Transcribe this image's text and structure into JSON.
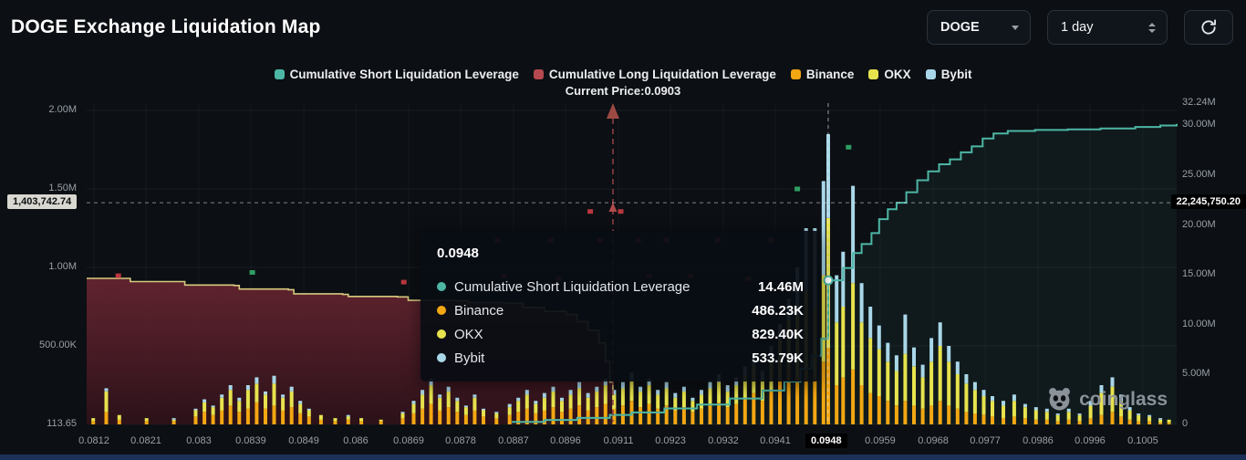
{
  "header": {
    "title": "DOGE Exchange Liquidation Map",
    "coin_select": {
      "value": "DOGE"
    },
    "range_select": {
      "value": "1 day"
    }
  },
  "legend": {
    "items": [
      {
        "label": "Cumulative Short Liquidation Leverage",
        "color": "#4db6a5"
      },
      {
        "label": "Cumulative Long Liquidation Leverage",
        "color": "#b5494f"
      },
      {
        "label": "Binance",
        "color": "#f3a712"
      },
      {
        "label": "OKX",
        "color": "#e7e34e"
      },
      {
        "label": "Bybit",
        "color": "#a9d7e8"
      }
    ],
    "current_price_label": "Current Price:0.0903"
  },
  "tooltip": {
    "title": "0.0948",
    "rows": [
      {
        "label": "Cumulative Short Liquidation Leverage",
        "value": "14.46M",
        "color": "#4db6a5"
      },
      {
        "label": "Binance",
        "value": "486.23K",
        "color": "#f3a712"
      },
      {
        "label": "OKX",
        "value": "829.40K",
        "color": "#e7e34e"
      },
      {
        "label": "Bybit",
        "value": "533.79K",
        "color": "#a9d7e8"
      }
    ]
  },
  "crosshair_badges": {
    "left_badge": "1,403,742.74",
    "right_badge": "22,245,750.20",
    "x_label": "0.0948"
  },
  "watermark": {
    "text": "coinglass"
  },
  "chart_data": {
    "type": "bar",
    "title": "DOGE Exchange Liquidation Map",
    "x_axis": {
      "labels": [
        "0.0812",
        "0.0821",
        "0.083",
        "0.0839",
        "0.0849",
        "0.086",
        "0.0869",
        "0.0878",
        "0.0887",
        "0.0896",
        "0.0911",
        "0.0923",
        "0.0932",
        "0.0941",
        "0.0948",
        "0.0959",
        "0.0968",
        "0.0977",
        "0.0986",
        "0.0996",
        "0.1005"
      ],
      "positions": [
        0.0067,
        0.0544,
        0.1029,
        0.1506,
        0.1992,
        0.2469,
        0.2954,
        0.3431,
        0.3916,
        0.4393,
        0.4879,
        0.5356,
        0.5841,
        0.6318,
        0.6803,
        0.728,
        0.7766,
        0.8243,
        0.8728,
        0.9205,
        0.969
      ],
      "highlight_index": 14
    },
    "y_left": {
      "max": 2.0,
      "unit": "M",
      "ticks": [
        {
          "label": "2.00M",
          "v": 2.0
        },
        {
          "label": "1.50M",
          "v": 1.5
        },
        {
          "label": "1.00M",
          "v": 1.0
        },
        {
          "label": "500.00K",
          "v": 0.5
        },
        {
          "label": "113.65",
          "v": 0
        }
      ]
    },
    "y_right": {
      "max": 32.24,
      "unit": "M",
      "ticks": [
        {
          "label": "32.24M",
          "v": 32.24
        },
        {
          "label": "30.00M",
          "v": 30
        },
        {
          "label": "25.00M",
          "v": 25
        },
        {
          "label": "20.00M",
          "v": 20
        },
        {
          "label": "15.00M",
          "v": 15
        },
        {
          "label": "10.00M",
          "v": 10
        },
        {
          "label": "5.00M",
          "v": 5
        },
        {
          "label": "0",
          "v": 0
        }
      ]
    },
    "current_price": {
      "value": "0.0903",
      "x": 0.4828,
      "color": "#9c4a44"
    },
    "crosshair": {
      "x": 0.6803,
      "y_right_value": 22.24575,
      "y_left_value": 1.40374274
    },
    "series": {
      "bars": {
        "names": [
          "Binance",
          "OKX",
          "Bybit"
        ],
        "colors": [
          "#f3a712",
          "#e7e34e",
          "#a9d7e8"
        ],
        "axis": "left",
        "points": [
          [
            0.006,
            0.02,
            0.02,
            0
          ],
          [
            0.018,
            0.08,
            0.13,
            0.02
          ],
          [
            0.03,
            0.03,
            0.03,
            0
          ],
          [
            0.055,
            0.02,
            0.02,
            0
          ],
          [
            0.08,
            0.02,
            0.01,
            0.01
          ],
          [
            0.1,
            0.05,
            0.04,
            0.01
          ],
          [
            0.108,
            0.08,
            0.06,
            0.02
          ],
          [
            0.116,
            0.06,
            0.05,
            0.01
          ],
          [
            0.124,
            0.09,
            0.08,
            0.02
          ],
          [
            0.132,
            0.12,
            0.1,
            0.03
          ],
          [
            0.14,
            0.08,
            0.07,
            0.02
          ],
          [
            0.148,
            0.1,
            0.12,
            0.03
          ],
          [
            0.156,
            0.14,
            0.12,
            0.04
          ],
          [
            0.164,
            0.1,
            0.09,
            0.02
          ],
          [
            0.172,
            0.12,
            0.14,
            0.05
          ],
          [
            0.18,
            0.09,
            0.08,
            0.02
          ],
          [
            0.188,
            0.11,
            0.1,
            0.03
          ],
          [
            0.196,
            0.07,
            0.06,
            0.02
          ],
          [
            0.204,
            0.05,
            0.04,
            0.01
          ],
          [
            0.215,
            0.03,
            0.03,
            0
          ],
          [
            0.228,
            0.02,
            0.02,
            0
          ],
          [
            0.24,
            0.03,
            0.02,
            0.01
          ],
          [
            0.252,
            0.02,
            0.02,
            0
          ],
          [
            0.27,
            0.02,
            0.01,
            0
          ],
          [
            0.29,
            0.04,
            0.03,
            0.01
          ],
          [
            0.3,
            0.07,
            0.06,
            0.02
          ],
          [
            0.308,
            0.1,
            0.09,
            0.03
          ],
          [
            0.316,
            0.13,
            0.12,
            0.04
          ],
          [
            0.324,
            0.09,
            0.08,
            0.02
          ],
          [
            0.332,
            0.11,
            0.1,
            0.03
          ],
          [
            0.34,
            0.08,
            0.07,
            0.02
          ],
          [
            0.348,
            0.06,
            0.05,
            0.01
          ],
          [
            0.356,
            0.09,
            0.08,
            0.02
          ],
          [
            0.364,
            0.05,
            0.04,
            0.01
          ],
          [
            0.376,
            0.04,
            0.03,
            0.01
          ],
          [
            0.388,
            0.06,
            0.05,
            0.02
          ],
          [
            0.396,
            0.08,
            0.07,
            0.02
          ],
          [
            0.404,
            0.1,
            0.09,
            0.03
          ],
          [
            0.412,
            0.07,
            0.06,
            0.02
          ],
          [
            0.42,
            0.09,
            0.08,
            0.03
          ],
          [
            0.428,
            0.11,
            0.1,
            0.03
          ],
          [
            0.436,
            0.08,
            0.07,
            0.02
          ],
          [
            0.444,
            0.1,
            0.09,
            0.03
          ],
          [
            0.452,
            0.12,
            0.11,
            0.04
          ],
          [
            0.46,
            0.09,
            0.08,
            0.03
          ],
          [
            0.468,
            0.11,
            0.1,
            0.03
          ],
          [
            0.476,
            0.13,
            0.12,
            0.04
          ],
          [
            0.484,
            0.1,
            0.09,
            0.03
          ],
          [
            0.492,
            0.12,
            0.11,
            0.04
          ],
          [
            0.5,
            0.15,
            0.13,
            0.05
          ],
          [
            0.508,
            0.11,
            0.1,
            0.03
          ],
          [
            0.516,
            0.13,
            0.12,
            0.04
          ],
          [
            0.524,
            0.1,
            0.09,
            0.03
          ],
          [
            0.532,
            0.12,
            0.11,
            0.04
          ],
          [
            0.54,
            0.09,
            0.08,
            0.03
          ],
          [
            0.548,
            0.11,
            0.1,
            0.03
          ],
          [
            0.556,
            0.08,
            0.07,
            0.02
          ],
          [
            0.564,
            0.1,
            0.09,
            0.03
          ],
          [
            0.572,
            0.12,
            0.11,
            0.04
          ],
          [
            0.58,
            0.14,
            0.13,
            0.05
          ],
          [
            0.588,
            0.11,
            0.1,
            0.04
          ],
          [
            0.596,
            0.13,
            0.12,
            0.05
          ],
          [
            0.604,
            0.16,
            0.15,
            0.06
          ],
          [
            0.612,
            0.2,
            0.18,
            0.07
          ],
          [
            0.62,
            0.15,
            0.14,
            0.05
          ],
          [
            0.628,
            0.22,
            0.2,
            0.08
          ],
          [
            0.636,
            0.28,
            0.26,
            0.1
          ],
          [
            0.644,
            0.35,
            0.32,
            0.13
          ],
          [
            0.652,
            0.3,
            0.4,
            0.3
          ],
          [
            0.66,
            0.35,
            0.5,
            0.4
          ],
          [
            0.668,
            0.3,
            0.45,
            0.5
          ],
          [
            0.676,
            0.4,
            0.55,
            0.6
          ],
          [
            0.6803,
            0.486,
            0.829,
            0.534
          ],
          [
            0.688,
            0.25,
            0.4,
            0.3
          ],
          [
            0.694,
            0.3,
            0.45,
            0.35
          ],
          [
            0.703,
            0.35,
            0.55,
            0.62
          ],
          [
            0.711,
            0.25,
            0.4,
            0.25
          ],
          [
            0.719,
            0.2,
            0.35,
            0.2
          ],
          [
            0.727,
            0.18,
            0.3,
            0.15
          ],
          [
            0.735,
            0.15,
            0.25,
            0.12
          ],
          [
            0.743,
            0.12,
            0.22,
            0.1
          ],
          [
            0.751,
            0.15,
            0.3,
            0.25
          ],
          [
            0.759,
            0.12,
            0.25,
            0.12
          ],
          [
            0.767,
            0.1,
            0.2,
            0.08
          ],
          [
            0.775,
            0.12,
            0.28,
            0.15
          ],
          [
            0.783,
            0.15,
            0.35,
            0.15
          ],
          [
            0.791,
            0.12,
            0.28,
            0.1
          ],
          [
            0.799,
            0.1,
            0.22,
            0.08
          ],
          [
            0.807,
            0.08,
            0.18,
            0.06
          ],
          [
            0.815,
            0.07,
            0.15,
            0.05
          ],
          [
            0.823,
            0.06,
            0.12,
            0.04
          ],
          [
            0.831,
            0.05,
            0.1,
            0.03
          ],
          [
            0.841,
            0.04,
            0.08,
            0.03
          ],
          [
            0.851,
            0.05,
            0.1,
            0.04
          ],
          [
            0.861,
            0.04,
            0.07,
            0.02
          ],
          [
            0.871,
            0.03,
            0.06,
            0.02
          ],
          [
            0.881,
            0.03,
            0.05,
            0.02
          ],
          [
            0.891,
            0.02,
            0.04,
            0.01
          ],
          [
            0.901,
            0.03,
            0.05,
            0.02
          ],
          [
            0.911,
            0.02,
            0.04,
            0.01
          ],
          [
            0.921,
            0.04,
            0.08,
            0.03
          ],
          [
            0.931,
            0.06,
            0.14,
            0.05
          ],
          [
            0.941,
            0.08,
            0.16,
            0.06
          ],
          [
            0.949,
            0.05,
            0.1,
            0.04
          ],
          [
            0.957,
            0.03,
            0.06,
            0.02
          ],
          [
            0.965,
            0.02,
            0.04,
            0.01
          ],
          [
            0.975,
            0.02,
            0.03,
            0.01
          ],
          [
            0.985,
            0.01,
            0.02,
            0.01
          ],
          [
            0.993,
            0.01,
            0.02,
            0
          ]
        ]
      },
      "short_line": {
        "name": "Cumulative Short Liquidation Leverage",
        "color": "#4db6a5",
        "fill": "rgba(77,182,165,0.07)",
        "axis": "right",
        "marker": [
          0.6803,
          14.46
        ],
        "points": [
          [
            0.39,
            0.25
          ],
          [
            0.42,
            0.45
          ],
          [
            0.45,
            0.65
          ],
          [
            0.48,
            0.95
          ],
          [
            0.5,
            1.2
          ],
          [
            0.53,
            1.6
          ],
          [
            0.56,
            2.0
          ],
          [
            0.59,
            2.6
          ],
          [
            0.62,
            3.4
          ],
          [
            0.64,
            4.3
          ],
          [
            0.655,
            5.6
          ],
          [
            0.665,
            6.9
          ],
          [
            0.674,
            8.6
          ],
          [
            0.6803,
            14.46
          ],
          [
            0.694,
            15.7
          ],
          [
            0.703,
            17.2
          ],
          [
            0.711,
            18.1
          ],
          [
            0.72,
            19.2
          ],
          [
            0.727,
            20.6
          ],
          [
            0.735,
            21.6
          ],
          [
            0.743,
            22.25
          ],
          [
            0.752,
            23.3
          ],
          [
            0.762,
            24.5
          ],
          [
            0.772,
            25.4
          ],
          [
            0.782,
            26.1
          ],
          [
            0.792,
            26.6
          ],
          [
            0.802,
            27.3
          ],
          [
            0.812,
            27.9
          ],
          [
            0.822,
            28.7
          ],
          [
            0.832,
            29.2
          ],
          [
            0.845,
            29.45
          ],
          [
            0.87,
            29.55
          ],
          [
            0.9,
            29.6
          ],
          [
            0.93,
            29.7
          ],
          [
            0.962,
            29.85
          ],
          [
            0.985,
            30.0
          ],
          [
            1.0,
            30.15
          ]
        ]
      },
      "long_area": {
        "name": "Cumulative Long Liquidation Leverage",
        "line_color": "#d6c97e",
        "fill_top": "#6e2733",
        "fill_bottom": "#2d1119",
        "axis": "left",
        "points": [
          [
            0,
            0.93
          ],
          [
            0.035,
            0.93
          ],
          [
            0.04,
            0.91
          ],
          [
            0.085,
            0.91
          ],
          [
            0.09,
            0.888
          ],
          [
            0.135,
            0.885
          ],
          [
            0.14,
            0.862
          ],
          [
            0.185,
            0.858
          ],
          [
            0.19,
            0.832
          ],
          [
            0.235,
            0.828
          ],
          [
            0.24,
            0.815
          ],
          [
            0.285,
            0.812
          ],
          [
            0.295,
            0.79
          ],
          [
            0.34,
            0.787
          ],
          [
            0.35,
            0.776
          ],
          [
            0.385,
            0.772
          ],
          [
            0.4,
            0.745
          ],
          [
            0.42,
            0.72
          ],
          [
            0.44,
            0.7
          ],
          [
            0.45,
            0.655
          ],
          [
            0.46,
            0.6
          ],
          [
            0.47,
            0.52
          ],
          [
            0.476,
            0.4
          ],
          [
            0.48,
            0.27
          ],
          [
            0.4828,
            0.1
          ],
          [
            0.4835,
            0
          ]
        ]
      }
    },
    "marks": [
      [
        0.029,
        0.53,
        "r"
      ],
      [
        0.152,
        0.52,
        "g"
      ],
      [
        0.291,
        0.55,
        "r"
      ],
      [
        0.377,
        0.42,
        "r"
      ],
      [
        0.383,
        0.53,
        "r"
      ],
      [
        0.426,
        0.42,
        "r"
      ],
      [
        0.433,
        0.54,
        "r"
      ],
      [
        0.462,
        0.33,
        "r"
      ],
      [
        0.471,
        0.42,
        "r"
      ],
      [
        0.49,
        0.33,
        "r"
      ],
      [
        0.506,
        0.42,
        "r"
      ],
      [
        0.516,
        0.53,
        "r"
      ],
      [
        0.532,
        0.42,
        "r"
      ],
      [
        0.554,
        0.53,
        "r"
      ],
      [
        0.579,
        0.42,
        "r"
      ],
      [
        0.607,
        0.54,
        "r"
      ],
      [
        0.628,
        0.42,
        "r"
      ],
      [
        0.652,
        0.26,
        "g"
      ],
      [
        0.699,
        0.13,
        "g"
      ]
    ]
  }
}
